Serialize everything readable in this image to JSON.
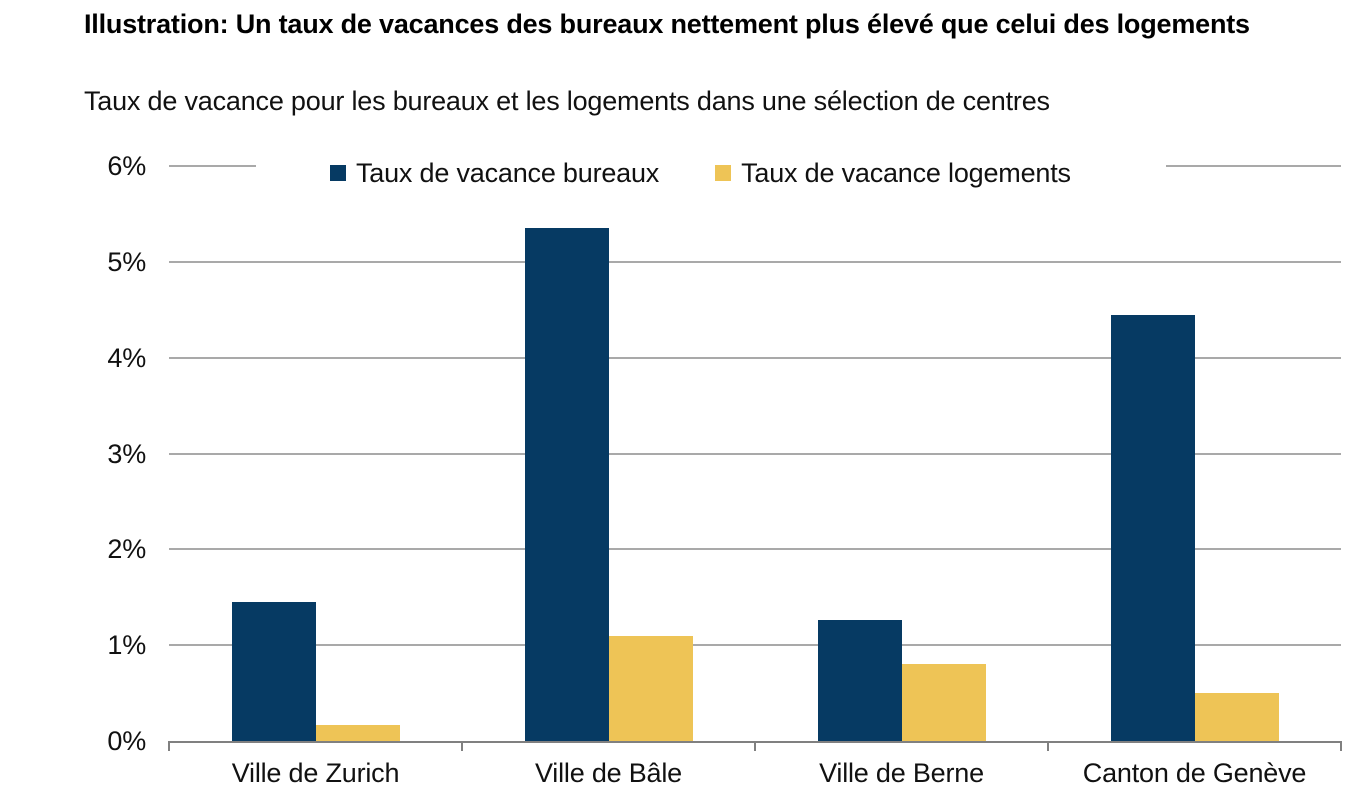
{
  "header": {
    "title": "Illustration: Un taux de vacances des bureaux nettement plus élevé que celui des logements",
    "subtitle": "Taux de vacance pour les bureaux et les logements dans une sélection de centres"
  },
  "colors": {
    "bureaux": "#063A63",
    "logements": "#EEC456",
    "gridline": "#A9A9A9",
    "axis": "#808080",
    "text": "#111111",
    "background": "#FFFFFF"
  },
  "legend": {
    "items": [
      {
        "label": "Taux de vacance bureaux",
        "color_key": "bureaux"
      },
      {
        "label": "Taux de vacance logements",
        "color_key": "logements"
      }
    ]
  },
  "chart_data": {
    "type": "bar",
    "title": "Illustration: Un taux de vacances des bureaux nettement plus élevé que celui des logements",
    "subtitle": "Taux de vacance pour les bureaux et les logements dans une sélection de centres",
    "categories": [
      "Ville de Zurich",
      "Ville de Bâle",
      "Ville de Berne",
      "Canton de Genève"
    ],
    "series": [
      {
        "name": "Taux de vacance bureaux",
        "color_key": "bureaux",
        "values": [
          1.45,
          5.35,
          1.26,
          4.45
        ]
      },
      {
        "name": "Taux de vacance logements",
        "color_key": "logements",
        "values": [
          0.17,
          1.1,
          0.8,
          0.5
        ]
      }
    ],
    "unit": "%",
    "ylim": [
      0,
      6
    ],
    "ytick_step": 1,
    "yticks": [
      "0%",
      "1%",
      "2%",
      "3%",
      "4%",
      "5%",
      "6%"
    ],
    "grid": true,
    "legend_position": "top-inside",
    "xlabel": "",
    "ylabel": ""
  }
}
